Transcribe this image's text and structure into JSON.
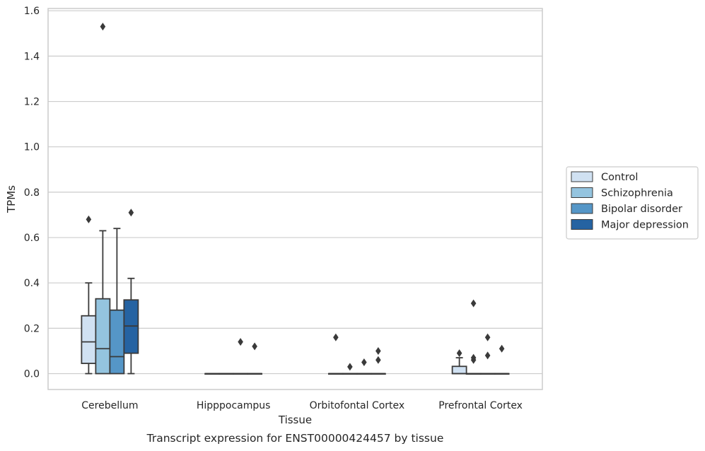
{
  "chart_data": {
    "type": "box",
    "xlabel": "Tissue",
    "ylabel": "TPMs",
    "caption": "Transcript expression for ENST00000424457 by tissue",
    "categories": [
      "Cerebellum",
      "Hipppocampus",
      "Orbitofontal Cortex",
      "Prefrontal Cortex"
    ],
    "ylim": [
      -0.07,
      1.61
    ],
    "yticks": [
      "0.0",
      "0.2",
      "0.4",
      "0.6",
      "0.8",
      "1.0",
      "1.2",
      "1.4",
      "1.6"
    ],
    "grid": "horizontal",
    "legend_position": "right",
    "series": [
      {
        "name": "Control",
        "color": "#d0e1f2",
        "boxes": [
          {
            "q1": 0.045,
            "median": 0.14,
            "q3": 0.255,
            "whisker_low": 0.0,
            "whisker_high": 0.4,
            "outliers": [
              0.68
            ]
          },
          {
            "q1": 0.0,
            "median": 0.0,
            "q3": 0.0,
            "whisker_low": 0.0,
            "whisker_high": 0.0,
            "outliers": []
          },
          {
            "q1": 0.0,
            "median": 0.0,
            "q3": 0.0,
            "whisker_low": 0.0,
            "whisker_high": 0.0,
            "outliers": [
              0.16
            ]
          },
          {
            "q1": 0.0,
            "median": 0.0,
            "q3": 0.032,
            "whisker_low": 0.0,
            "whisker_high": 0.07,
            "outliers": [
              0.09
            ]
          }
        ]
      },
      {
        "name": "Schizophrenia",
        "color": "#94c4df",
        "boxes": [
          {
            "q1": 0.0,
            "median": 0.11,
            "q3": 0.33,
            "whisker_low": 0.0,
            "whisker_high": 0.63,
            "outliers": [
              1.53
            ]
          },
          {
            "q1": 0.0,
            "median": 0.0,
            "q3": 0.0,
            "whisker_low": 0.0,
            "whisker_high": 0.0,
            "outliers": []
          },
          {
            "q1": 0.0,
            "median": 0.0,
            "q3": 0.0,
            "whisker_low": 0.0,
            "whisker_high": 0.0,
            "outliers": [
              0.03
            ]
          },
          {
            "q1": 0.0,
            "median": 0.0,
            "q3": 0.0,
            "whisker_low": 0.0,
            "whisker_high": 0.0,
            "outliers": [
              0.31,
              0.07,
              0.06
            ]
          }
        ]
      },
      {
        "name": "Bipolar disorder",
        "color": "#5596c7",
        "boxes": [
          {
            "q1": 0.0,
            "median": 0.075,
            "q3": 0.28,
            "whisker_low": 0.0,
            "whisker_high": 0.64,
            "outliers": []
          },
          {
            "q1": 0.0,
            "median": 0.0,
            "q3": 0.0,
            "whisker_low": 0.0,
            "whisker_high": 0.0,
            "outliers": [
              0.14
            ]
          },
          {
            "q1": 0.0,
            "median": 0.0,
            "q3": 0.0,
            "whisker_low": 0.0,
            "whisker_high": 0.0,
            "outliers": [
              0.05
            ]
          },
          {
            "q1": 0.0,
            "median": 0.0,
            "q3": 0.0,
            "whisker_low": 0.0,
            "whisker_high": 0.0,
            "outliers": [
              0.16,
              0.08
            ]
          }
        ]
      },
      {
        "name": "Major depression",
        "color": "#2563a2",
        "boxes": [
          {
            "q1": 0.09,
            "median": 0.21,
            "q3": 0.325,
            "whisker_low": 0.0,
            "whisker_high": 0.42,
            "outliers": [
              0.71
            ]
          },
          {
            "q1": 0.0,
            "median": 0.0,
            "q3": 0.0,
            "whisker_low": 0.0,
            "whisker_high": 0.0,
            "outliers": [
              0.12
            ]
          },
          {
            "q1": 0.0,
            "median": 0.0,
            "q3": 0.0,
            "whisker_low": 0.0,
            "whisker_high": 0.0,
            "outliers": [
              0.1,
              0.06
            ]
          },
          {
            "q1": 0.0,
            "median": 0.0,
            "q3": 0.0,
            "whisker_low": 0.0,
            "whisker_high": 0.0,
            "outliers": [
              0.11
            ]
          }
        ]
      }
    ]
  }
}
